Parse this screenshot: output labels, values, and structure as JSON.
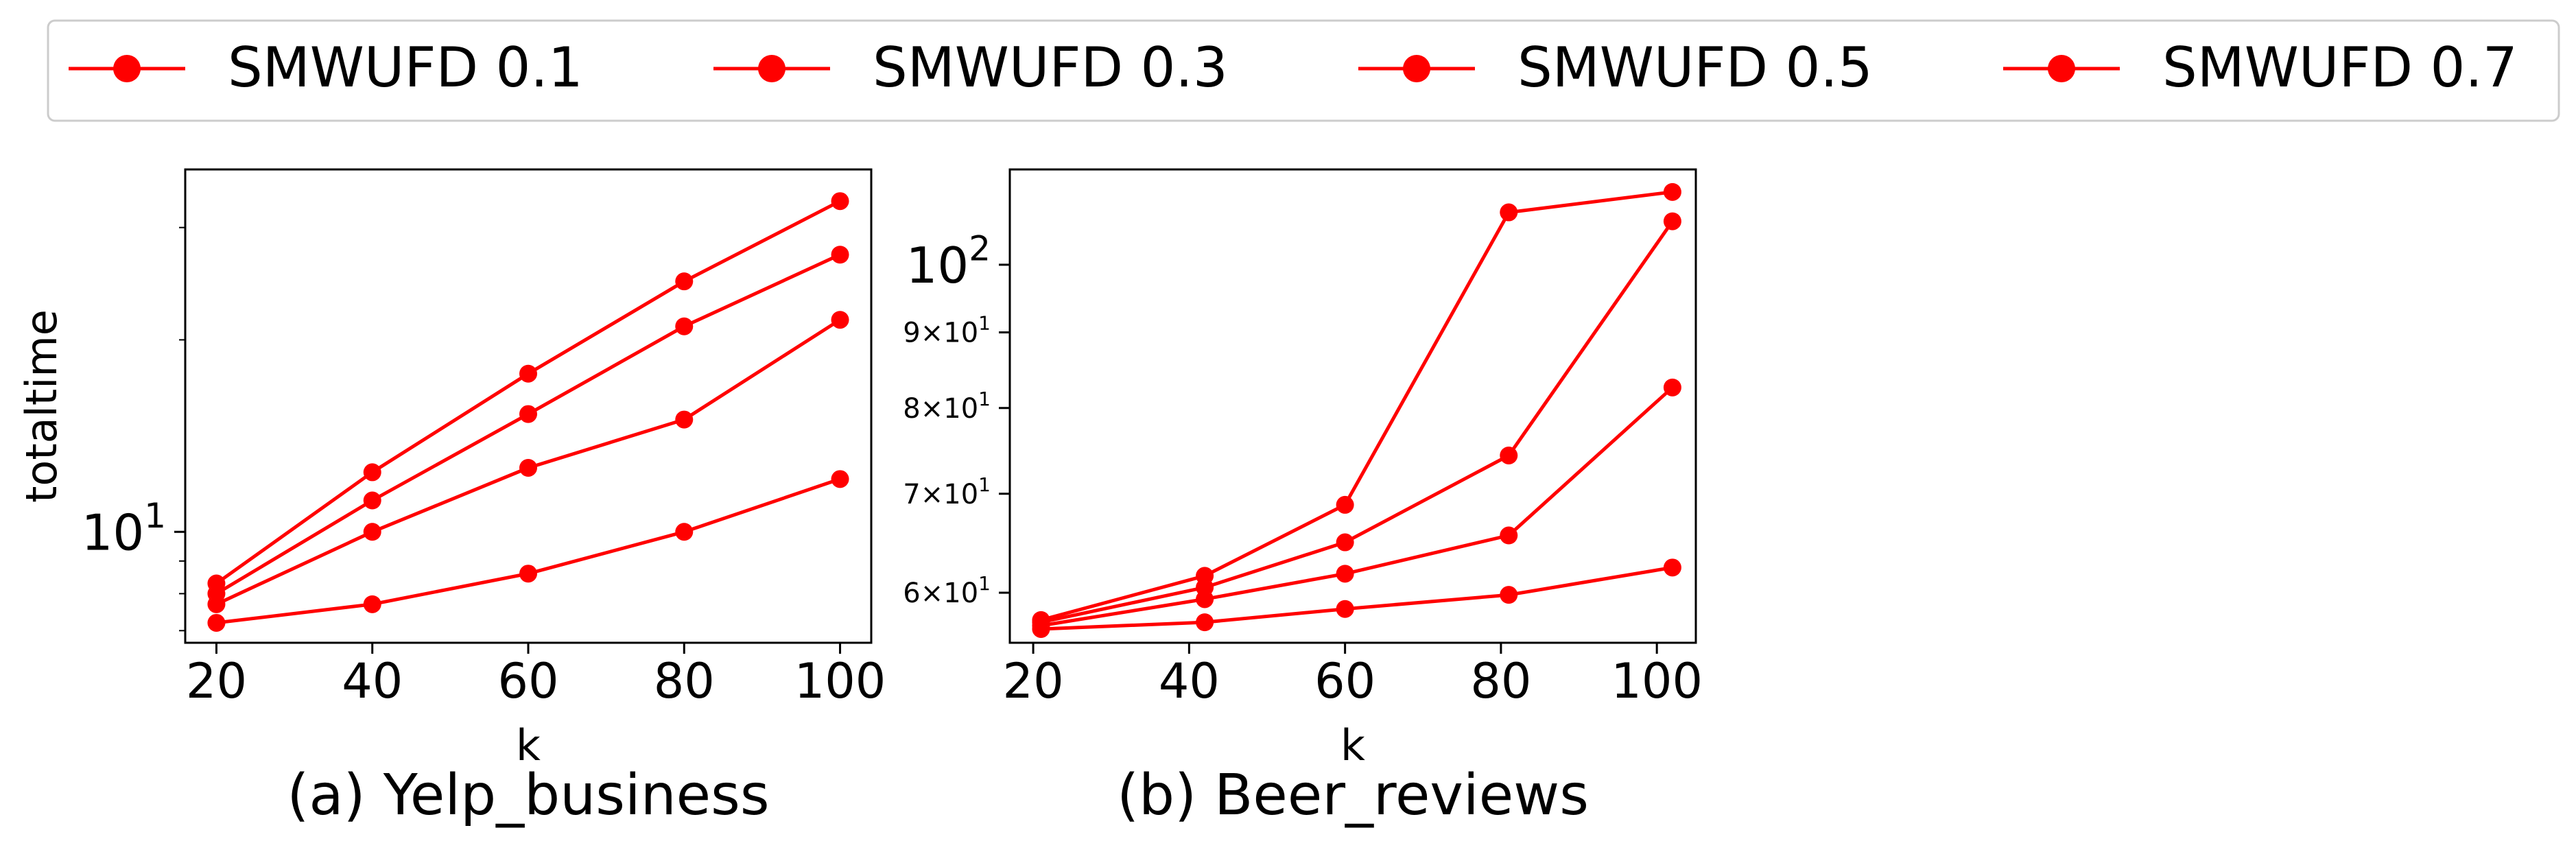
{
  "colors": {
    "series": "#ff0000",
    "axis": "#000000",
    "legend_border": "#cccccc"
  },
  "legend": {
    "placement": "top-center",
    "entries": [
      "SMWUFD 0.1",
      "SMWUFD 0.3",
      "SMWUFD 0.5",
      "SMWUFD 0.7"
    ]
  },
  "chart_data": [
    {
      "type": "line",
      "title": "(a) Yelp_business",
      "xlabel": "k",
      "ylabel": "totaltime",
      "y_scale": "log",
      "xlim": [
        16,
        104
      ],
      "ylim": [
        6.7,
        37
      ],
      "x_ticks": [
        20,
        40,
        60,
        80,
        100
      ],
      "y_ticks_labeled": [
        {
          "value": 10,
          "label": "10^1"
        }
      ],
      "y_minor_ticks": [
        7,
        8,
        9,
        20,
        30
      ],
      "grid": false,
      "series": [
        {
          "name": "SMWUFD 0.1",
          "x": [
            20,
            40,
            60,
            80,
            100
          ],
          "y": [
            7.2,
            7.7,
            8.6,
            10.0,
            12.1
          ]
        },
        {
          "name": "SMWUFD 0.3",
          "x": [
            20,
            40,
            60,
            80,
            100
          ],
          "y": [
            7.7,
            10.0,
            12.6,
            15.0,
            21.5
          ]
        },
        {
          "name": "SMWUFD 0.5",
          "x": [
            20,
            40,
            60,
            80,
            100
          ],
          "y": [
            8.0,
            11.2,
            15.3,
            21.0,
            27.2
          ]
        },
        {
          "name": "SMWUFD 0.7",
          "x": [
            20,
            40,
            60,
            80,
            100
          ],
          "y": [
            8.3,
            12.4,
            17.7,
            24.7,
            33.0
          ]
        }
      ]
    },
    {
      "type": "line",
      "title": "(b) Beer_reviews",
      "xlabel": "k",
      "ylabel": "",
      "y_scale": "log",
      "xlim": [
        17,
        105
      ],
      "ylim": [
        55.5,
        116
      ],
      "x_ticks": [
        20,
        40,
        60,
        80,
        100
      ],
      "y_ticks_labeled": [
        {
          "value": 60,
          "label": "6×10^1"
        },
        {
          "value": 70,
          "label": "7×10^1"
        },
        {
          "value": 80,
          "label": "8×10^1"
        },
        {
          "value": 90,
          "label": "9×10^1"
        },
        {
          "value": 100,
          "label": "10^2"
        }
      ],
      "grid": false,
      "series": [
        {
          "name": "SMWUFD 0.1",
          "x": [
            21,
            42,
            60,
            81,
            102
          ],
          "y": [
            56.7,
            57.3,
            58.5,
            59.8,
            62.4
          ]
        },
        {
          "name": "SMWUFD 0.3",
          "x": [
            21,
            42,
            60,
            81,
            102
          ],
          "y": [
            57.0,
            59.4,
            61.8,
            65.6,
            82.6
          ]
        },
        {
          "name": "SMWUFD 0.5",
          "x": [
            21,
            42,
            60,
            81,
            102
          ],
          "y": [
            57.3,
            60.5,
            64.9,
            74.3,
            107
          ]
        },
        {
          "name": "SMWUFD 0.7",
          "x": [
            21,
            42,
            60,
            81,
            102
          ],
          "y": [
            57.5,
            61.6,
            68.8,
            108.5,
            112
          ]
        }
      ]
    }
  ]
}
